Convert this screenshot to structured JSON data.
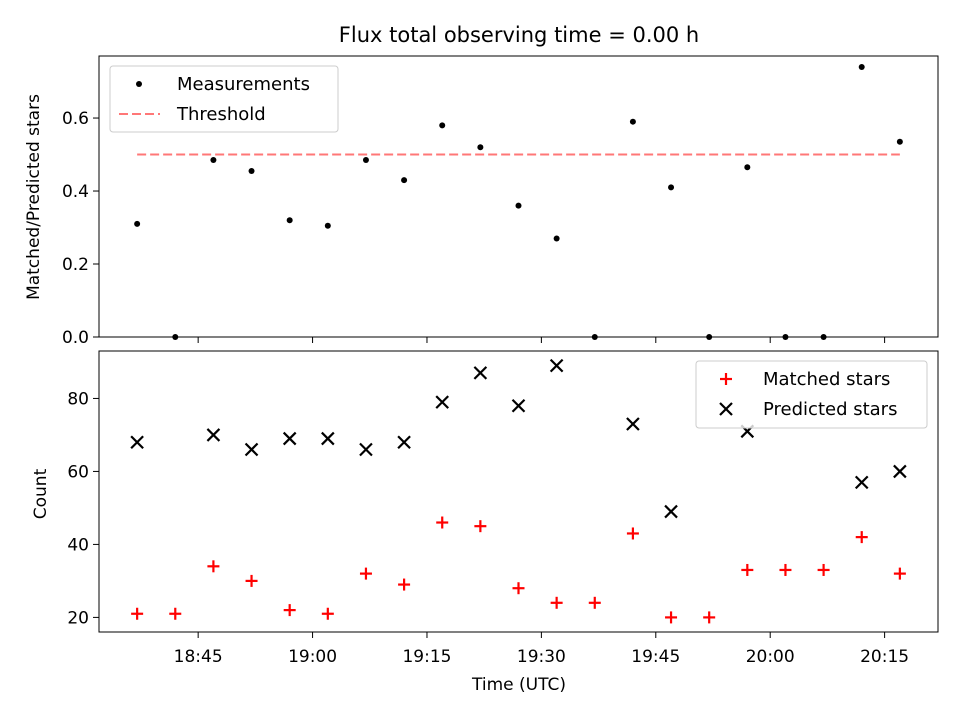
{
  "chart_data": [
    {
      "type": "scatter",
      "title": "Flux total observing time = 0.00 h",
      "xlabel": "",
      "ylabel": "Matched/Predicted stars",
      "xlim": [
        "18:32",
        "20:22"
      ],
      "ylim": [
        0,
        0.77
      ],
      "yticks": [
        0.0,
        0.2,
        0.4,
        0.6
      ],
      "ytick_labels": [
        "0.0",
        "0.2",
        "0.4",
        "0.6"
      ],
      "grid": false,
      "legend_position": "top-left",
      "series": [
        {
          "name": "Measurements",
          "marker": "dot",
          "color": "#000000",
          "x": [
            "18:37",
            "18:42",
            "18:47",
            "18:52",
            "18:57",
            "19:02",
            "19:07",
            "19:12",
            "19:17",
            "19:22",
            "19:27",
            "19:32",
            "19:37",
            "19:42",
            "19:47",
            "19:52",
            "19:57",
            "20:02",
            "20:07",
            "20:12",
            "20:17"
          ],
          "y": [
            0.31,
            0.0,
            0.485,
            0.455,
            0.32,
            0.305,
            0.485,
            0.43,
            0.58,
            0.52,
            0.36,
            0.27,
            0.0,
            0.59,
            0.41,
            0.0,
            0.465,
            0.0,
            0.0,
            0.74,
            0.535
          ]
        },
        {
          "name": "Threshold",
          "style": "dashed-line",
          "color": "#ff7777",
          "x": [
            "18:37",
            "20:17"
          ],
          "y": [
            0.5,
            0.5
          ]
        }
      ]
    },
    {
      "type": "scatter",
      "title": "",
      "xlabel": "Time (UTC)",
      "ylabel": "Count",
      "xlim": [
        "18:32",
        "20:22"
      ],
      "ylim": [
        16,
        93
      ],
      "yticks": [
        20,
        40,
        60,
        80
      ],
      "ytick_labels": [
        "20",
        "40",
        "60",
        "80"
      ],
      "xticks": [
        "18:45",
        "19:00",
        "19:15",
        "19:30",
        "19:45",
        "20:00",
        "20:15"
      ],
      "grid": false,
      "legend_position": "top-right",
      "series": [
        {
          "name": "Matched stars",
          "marker": "plus",
          "color": "#ff0000",
          "x": [
            "18:37",
            "18:42",
            "18:47",
            "18:52",
            "18:57",
            "19:02",
            "19:07",
            "19:12",
            "19:17",
            "19:22",
            "19:27",
            "19:32",
            "19:37",
            "19:42",
            "19:47",
            "19:52",
            "19:57",
            "20:02",
            "20:07",
            "20:12",
            "20:17"
          ],
          "y": [
            21,
            21,
            34,
            30,
            22,
            21,
            32,
            29,
            46,
            45,
            28,
            24,
            24,
            43,
            20,
            20,
            33,
            33,
            33,
            42,
            32
          ]
        },
        {
          "name": "Predicted stars",
          "marker": "x",
          "color": "#000000",
          "x": [
            "18:37",
            "18:47",
            "18:52",
            "18:57",
            "19:02",
            "19:07",
            "19:12",
            "19:17",
            "19:22",
            "19:27",
            "19:32",
            "19:42",
            "19:47",
            "19:57",
            "20:12",
            "20:17"
          ],
          "y": [
            68,
            70,
            66,
            69,
            69,
            66,
            68,
            79,
            87,
            78,
            89,
            73,
            49,
            71,
            57,
            60
          ]
        }
      ]
    }
  ]
}
